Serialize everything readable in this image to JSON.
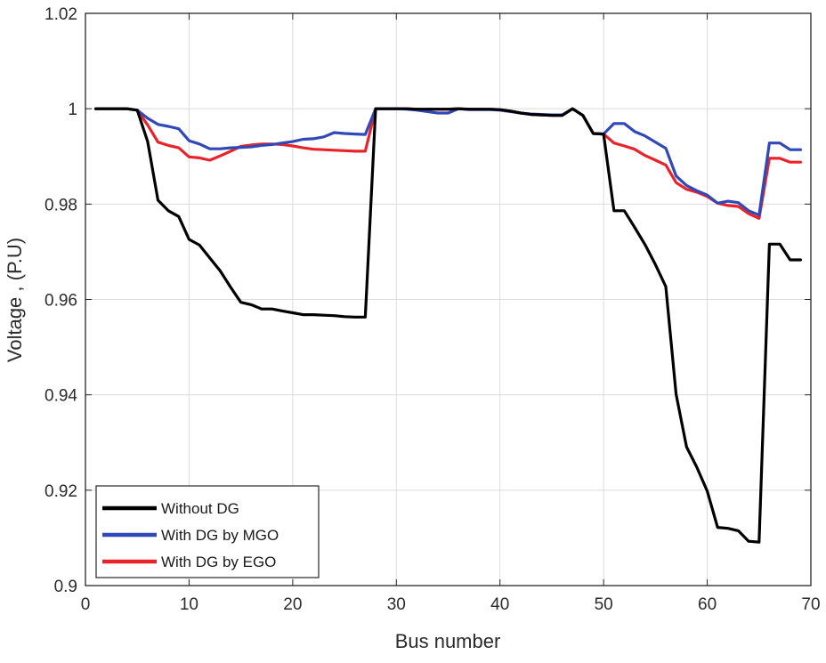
{
  "chart_data": {
    "type": "line",
    "title": "",
    "xlabel": "Bus number",
    "ylabel": "Voltage , (P.U)",
    "xlim": [
      0,
      70
    ],
    "ylim": [
      0.9,
      1.02
    ],
    "xticks": [
      0,
      10,
      20,
      30,
      40,
      50,
      60,
      70
    ],
    "xtick_labels": [
      "0",
      "10",
      "20",
      "30",
      "40",
      "50",
      "60",
      "70"
    ],
    "yticks": [
      0.9,
      0.92,
      0.94,
      0.96,
      0.98,
      1.0,
      1.02
    ],
    "ytick_labels": [
      "0.9",
      "0.92",
      "0.94",
      "0.96",
      "0.98",
      "1",
      "1.02"
    ],
    "grid": true,
    "legend_position": "bottom-left",
    "series": [
      {
        "name": "Without DG",
        "color": "#000000",
        "x": [
          1,
          2,
          3,
          4,
          5,
          6,
          7,
          8,
          9,
          10,
          11,
          12,
          13,
          14,
          15,
          16,
          17,
          18,
          19,
          20,
          21,
          22,
          23,
          24,
          25,
          26,
          27,
          28,
          29,
          30,
          31,
          32,
          33,
          34,
          35,
          36,
          37,
          38,
          39,
          40,
          41,
          42,
          43,
          44,
          45,
          46,
          47,
          48,
          49,
          50,
          51,
          52,
          53,
          54,
          55,
          56,
          57,
          58,
          59,
          60,
          61,
          62,
          63,
          64,
          65,
          66,
          67,
          68,
          69
        ],
        "values": [
          1.0,
          1.0,
          1.0,
          1.0,
          0.9997,
          0.9931,
          0.9808,
          0.9786,
          0.9774,
          0.9726,
          0.9714,
          0.9687,
          0.966,
          0.9626,
          0.9594,
          0.9589,
          0.958,
          0.958,
          0.9576,
          0.9572,
          0.9568,
          0.9568,
          0.9567,
          0.9566,
          0.9564,
          0.9563,
          0.9563,
          1.0,
          1.0,
          1.0,
          1.0,
          0.9999,
          0.9999,
          0.9999,
          0.9999,
          1.0,
          0.9999,
          0.9999,
          0.9999,
          0.9998,
          0.9995,
          0.9991,
          0.9988,
          0.9987,
          0.9986,
          0.9986,
          1.0,
          0.9986,
          0.9948,
          0.9947,
          0.9786,
          0.9786,
          0.9751,
          0.9715,
          0.9673,
          0.9627,
          0.9401,
          0.9291,
          0.9248,
          0.9198,
          0.9122,
          0.912,
          0.9115,
          0.9093,
          0.9091,
          0.9716,
          0.9716,
          0.9683,
          0.9683
        ]
      },
      {
        "name": "With DG by MGO",
        "color": "#3048b8",
        "x": [
          1,
          2,
          3,
          4,
          5,
          6,
          7,
          8,
          9,
          10,
          11,
          12,
          13,
          14,
          15,
          16,
          17,
          18,
          19,
          20,
          21,
          22,
          23,
          24,
          25,
          26,
          27,
          28,
          29,
          30,
          31,
          32,
          33,
          34,
          35,
          36,
          37,
          38,
          39,
          40,
          41,
          42,
          43,
          44,
          45,
          46,
          47,
          48,
          49,
          50,
          51,
          52,
          53,
          54,
          55,
          56,
          57,
          58,
          59,
          60,
          61,
          62,
          63,
          64,
          65,
          66,
          67,
          68,
          69
        ],
        "values": [
          1.0,
          1.0,
          1.0,
          1.0,
          0.9997,
          0.998,
          0.9967,
          0.9963,
          0.9958,
          0.9933,
          0.9926,
          0.9916,
          0.9916,
          0.9918,
          0.9919,
          0.992,
          0.9923,
          0.9925,
          0.9928,
          0.9931,
          0.9936,
          0.9937,
          0.9941,
          0.995,
          0.9948,
          0.9947,
          0.9946,
          1.0,
          1.0,
          1.0,
          0.9999,
          0.9997,
          0.9994,
          0.9991,
          0.9991,
          1.0,
          0.9998,
          0.9998,
          0.9998,
          0.9997,
          0.9994,
          0.9991,
          0.9989,
          0.9988,
          0.9987,
          0.9987,
          1.0,
          0.9986,
          0.9948,
          0.9947,
          0.9969,
          0.9969,
          0.9952,
          0.9943,
          0.993,
          0.9917,
          0.9859,
          0.9839,
          0.9828,
          0.9819,
          0.9802,
          0.9806,
          0.9803,
          0.9786,
          0.9777,
          0.9928,
          0.9928,
          0.9914,
          0.9914
        ]
      },
      {
        "name": "With DG by EGO",
        "color": "#e8232a",
        "x": [
          1,
          2,
          3,
          4,
          5,
          6,
          7,
          8,
          9,
          10,
          11,
          12,
          13,
          14,
          15,
          16,
          17,
          18,
          19,
          20,
          21,
          22,
          23,
          24,
          25,
          26,
          27,
          28,
          29,
          30,
          31,
          32,
          33,
          34,
          35,
          36,
          37,
          38,
          39,
          40,
          41,
          42,
          43,
          44,
          45,
          46,
          47,
          48,
          49,
          50,
          51,
          52,
          53,
          54,
          55,
          56,
          57,
          58,
          59,
          60,
          61,
          62,
          63,
          64,
          65,
          66,
          67,
          68,
          69
        ],
        "values": [
          1.0,
          1.0,
          1.0,
          1.0,
          0.9997,
          0.9966,
          0.993,
          0.9923,
          0.9918,
          0.9899,
          0.9897,
          0.9892,
          0.9901,
          0.9911,
          0.9921,
          0.9924,
          0.9926,
          0.9926,
          0.9925,
          0.9922,
          0.9918,
          0.9915,
          0.9914,
          0.9913,
          0.9912,
          0.9911,
          0.9911,
          1.0,
          1.0,
          1.0,
          1.0,
          0.9999,
          0.9999,
          0.9999,
          0.9999,
          1.0,
          0.9999,
          0.9999,
          0.9999,
          0.9998,
          0.9995,
          0.9991,
          0.9988,
          0.9987,
          0.9986,
          0.9986,
          1.0,
          0.9986,
          0.9948,
          0.9947,
          0.9928,
          0.9922,
          0.9915,
          0.9902,
          0.9892,
          0.9882,
          0.9845,
          0.9831,
          0.9825,
          0.9816,
          0.9802,
          0.9797,
          0.9795,
          0.978,
          0.977,
          0.9896,
          0.9896,
          0.9888,
          0.9888
        ]
      }
    ]
  }
}
